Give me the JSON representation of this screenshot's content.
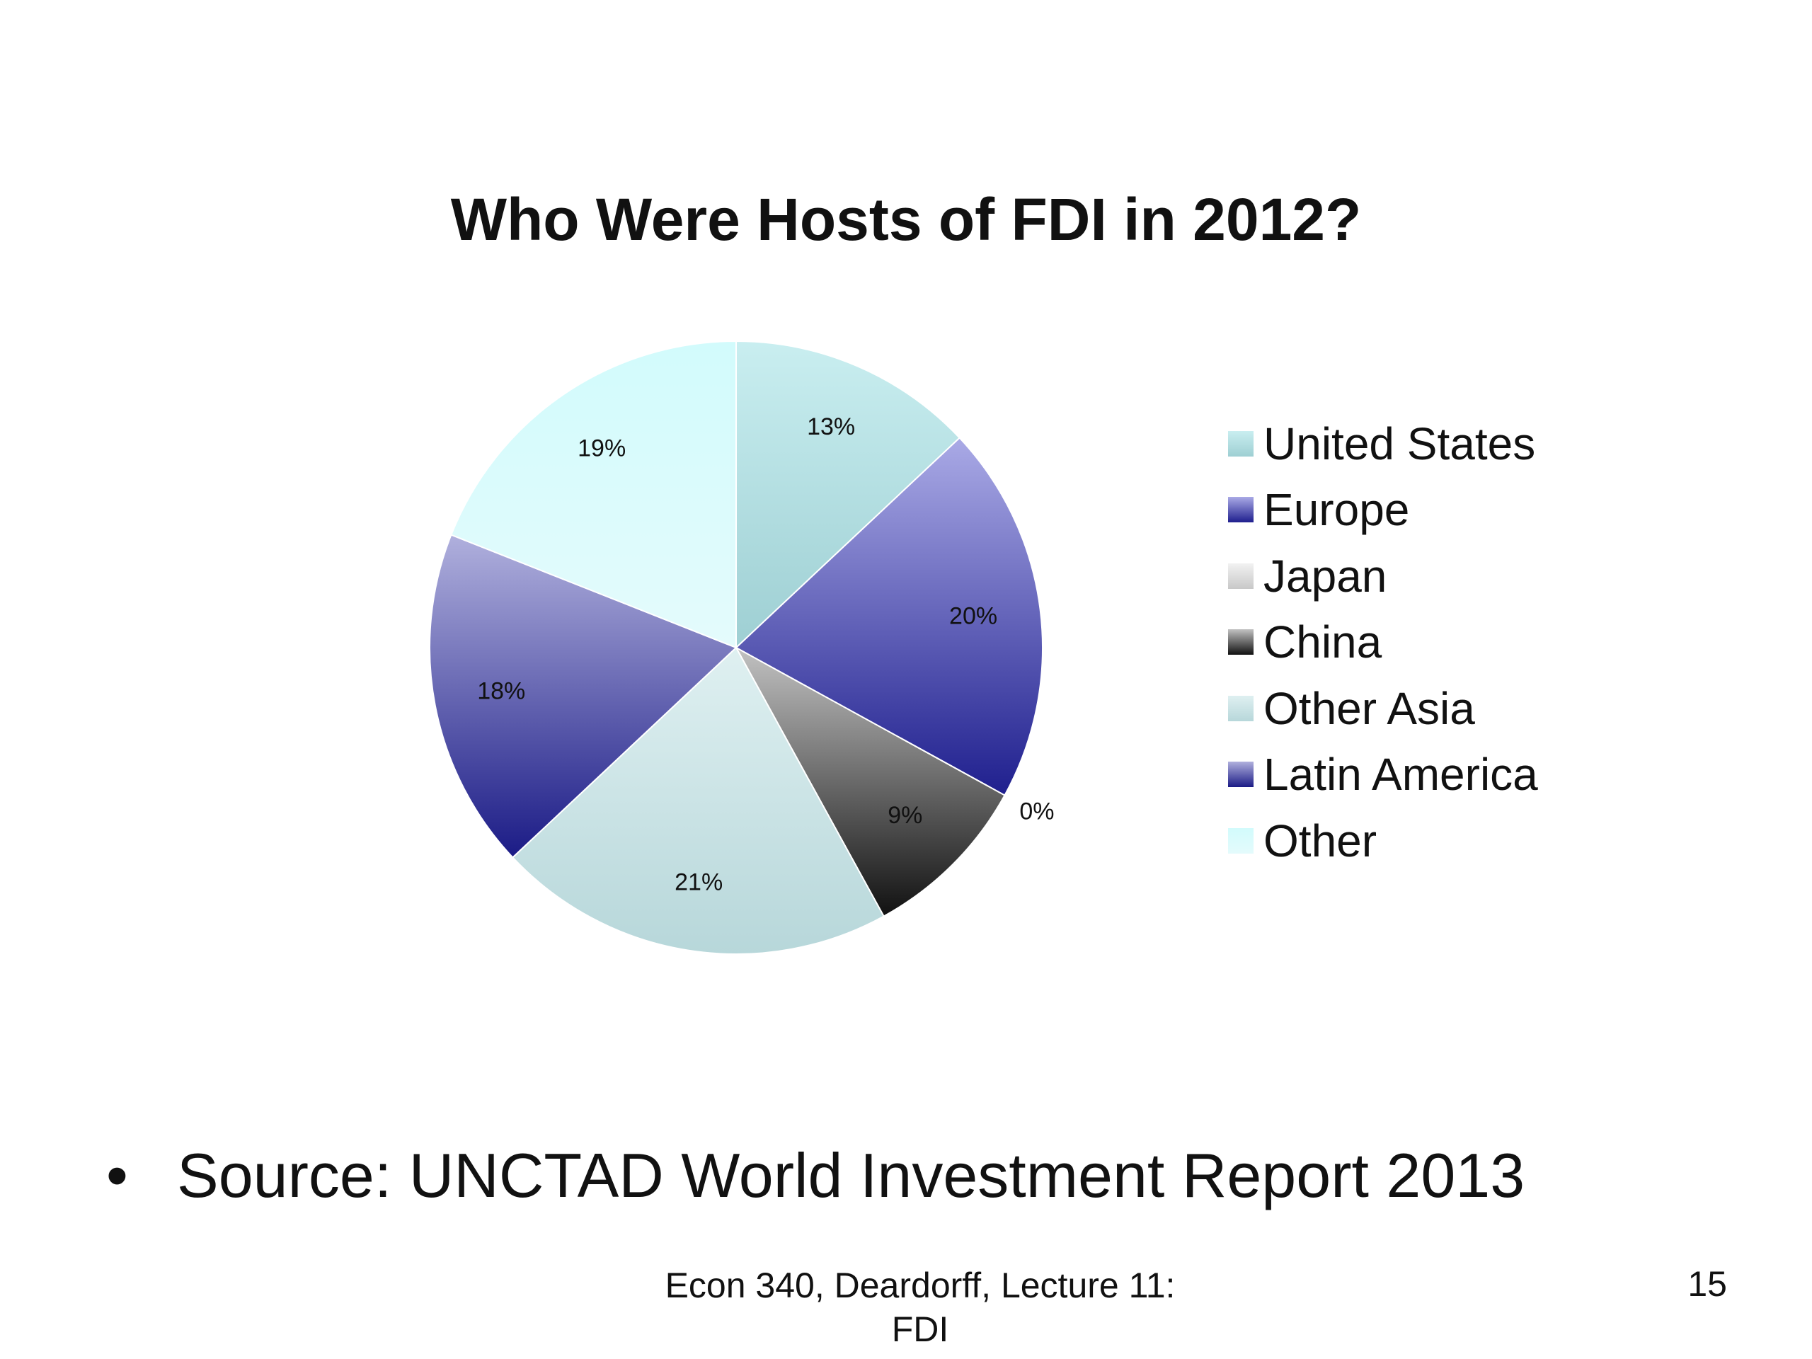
{
  "chart_data": {
    "type": "pie",
    "title": "Who Were Hosts of FDI in 2012?",
    "categories": [
      "United States",
      "Europe",
      "Japan",
      "China",
      "Other Asia",
      "Latin America",
      "Other"
    ],
    "values": [
      13,
      20,
      0,
      9,
      21,
      18,
      19
    ],
    "data_labels": [
      "13%",
      "20%",
      "0%",
      "9%",
      "21%",
      "18%",
      "19%"
    ],
    "legend": "right",
    "colors": [
      {
        "light": "#c9eef0",
        "dark": "#9ecfd3"
      },
      {
        "light": "#aaaae6",
        "dark": "#1f1f8e"
      },
      {
        "light": "#f2f2f2",
        "dark": "#c8c8c8"
      },
      {
        "light": "#c2c2c2",
        "dark": "#111111"
      },
      {
        "light": "#dff0f1",
        "dark": "#b7d7da"
      },
      {
        "light": "#b0b0dd",
        "dark": "#1b1b86"
      },
      {
        "light": "#d2fbfc",
        "dark": "#e4fbfc"
      }
    ]
  },
  "slide": {
    "bullet": "•",
    "source": "Source:  UNCTAD World Investment Report 2013",
    "footer_line1": "Econ 340, Deardorff, Lecture 11:",
    "footer_line2": "FDI",
    "page_number": "15"
  }
}
